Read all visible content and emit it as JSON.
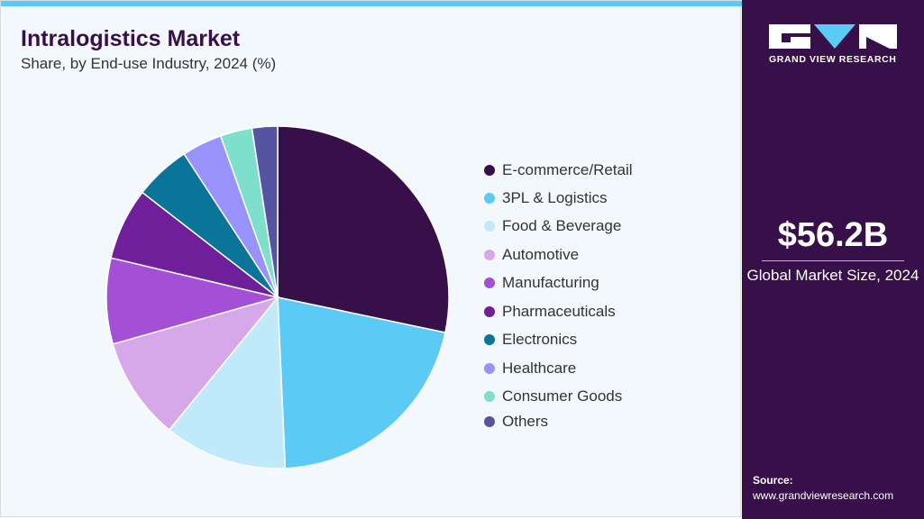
{
  "header": {
    "title": "Intralogistics Market",
    "subtitle": "Share, by End-use Industry, 2024 (%)"
  },
  "chart_data": {
    "type": "pie",
    "title": "Intralogistics Market",
    "subtitle": "Share, by End-use Industry, 2024 (%)",
    "start": "12 o'clock, clockwise",
    "legend_position": "right",
    "categories": [
      "E-commerce/Retail",
      "3PL & Logistics",
      "Food & Beverage",
      "Automotive",
      "Manufacturing",
      "Pharmaceuticals",
      "Electronics",
      "Healthcare",
      "Consumer Goods",
      "Others"
    ],
    "values": [
      28.3,
      21.0,
      11.6,
      9.7,
      8.1,
      6.8,
      5.3,
      3.8,
      3.0,
      2.4
    ],
    "colors": [
      "#37104a",
      "#5bcbf5",
      "#c0eafa",
      "#d6a8ea",
      "#a34fd6",
      "#6f1f9a",
      "#0b7499",
      "#9793fb",
      "#7ee0cc",
      "#5454a0"
    ]
  },
  "sidebar": {
    "logo_text": "GRAND VIEW RESEARCH",
    "market_size": "$56.2B",
    "market_size_label": "Global Market Size, 2024",
    "source_label": "Source:",
    "source_url": "www.grandviewresearch.com"
  }
}
